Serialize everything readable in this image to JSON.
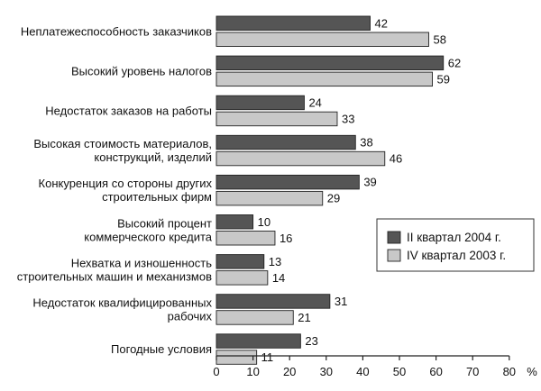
{
  "chart_data": {
    "type": "bar",
    "orientation": "horizontal",
    "categories": [
      [
        "Неплатежеспособность заказчиков"
      ],
      [
        "Высокий уровень налогов"
      ],
      [
        "Недостаток заказов на работы"
      ],
      [
        "Высокая стоимость материалов,",
        "конструкций, изделий"
      ],
      [
        "Конкуренция со стороны других",
        "строительных фирм"
      ],
      [
        "Высокий процент",
        "коммерческого кредита"
      ],
      [
        "Нехватка и изношенность",
        "строительных машин и механизмов"
      ],
      [
        "Недостаток квалифицированных",
        "рабочих"
      ],
      [
        "Погодные условия"
      ]
    ],
    "series": [
      {
        "name": "II квартал 2004 г.",
        "color": "#555555",
        "values": [
          42,
          62,
          24,
          38,
          39,
          10,
          13,
          31,
          23
        ]
      },
      {
        "name": "IV квартал 2003 г.",
        "color": "#c8c8c8",
        "values": [
          58,
          59,
          33,
          46,
          29,
          16,
          14,
          21,
          11
        ]
      }
    ],
    "xlim": [
      0,
      80
    ],
    "xticks": [
      0,
      10,
      20,
      30,
      40,
      50,
      60,
      70,
      80
    ],
    "x_unit": "%",
    "grid": false,
    "legend_position": "right"
  }
}
